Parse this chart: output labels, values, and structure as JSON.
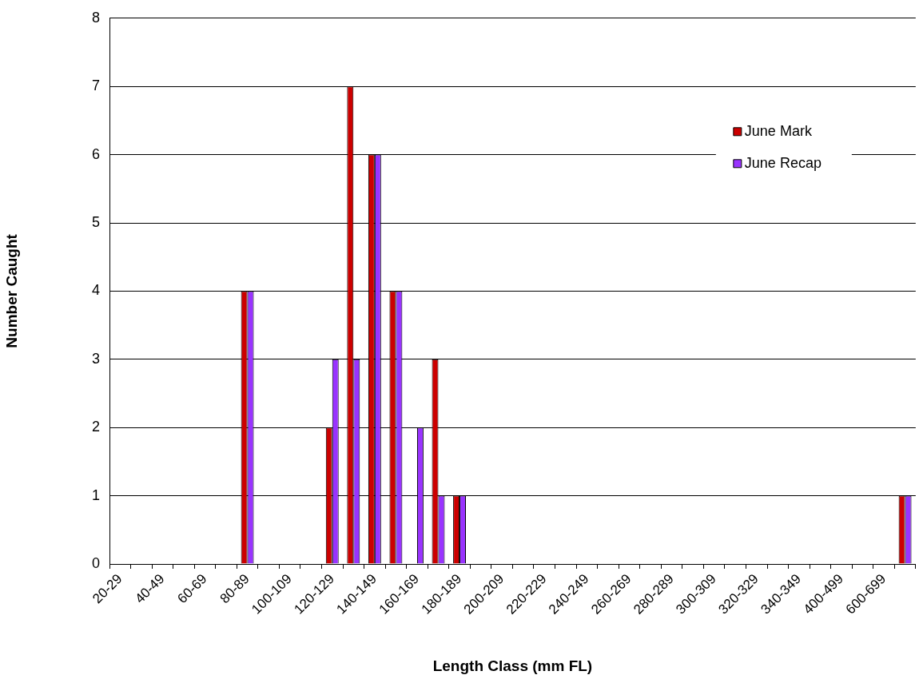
{
  "chart_data": {
    "type": "bar",
    "xlabel": "Length Class (mm FL)",
    "ylabel": "Number Caught",
    "categories": [
      "20-29",
      null,
      "40-49",
      null,
      "60-69",
      null,
      "80-89",
      null,
      "100-109",
      null,
      "120-129",
      null,
      "140-149",
      null,
      "160-169",
      null,
      "180-189",
      null,
      "200-209",
      null,
      "220-229",
      null,
      "240-249",
      null,
      "260-269",
      null,
      "280-289",
      null,
      "300-309",
      null,
      "320-329",
      null,
      "340-349",
      null,
      "400-499",
      null,
      "600-699",
      null
    ],
    "series": [
      {
        "name": "June Mark",
        "color": "#cc0000",
        "values": [
          0,
          0,
          0,
          0,
          0,
          0,
          4,
          0,
          0,
          0,
          2,
          7,
          6,
          4,
          0,
          3,
          1,
          0,
          0,
          0,
          0,
          0,
          0,
          0,
          0,
          0,
          0,
          0,
          0,
          0,
          0,
          0,
          0,
          0,
          0,
          0,
          0,
          1
        ]
      },
      {
        "name": "June Recap",
        "color": "#9933ff",
        "values": [
          0,
          0,
          0,
          0,
          0,
          0,
          4,
          0,
          0,
          0,
          3,
          3,
          6,
          4,
          2,
          1,
          1,
          0,
          0,
          0,
          0,
          0,
          0,
          0,
          0,
          0,
          0,
          0,
          0,
          0,
          0,
          0,
          0,
          0,
          0,
          0,
          0,
          1
        ]
      }
    ],
    "ylim": [
      0,
      8
    ],
    "yticks": [
      0,
      1,
      2,
      3,
      4,
      5,
      6,
      7,
      8
    ],
    "grid": "y",
    "legend": "top right"
  }
}
